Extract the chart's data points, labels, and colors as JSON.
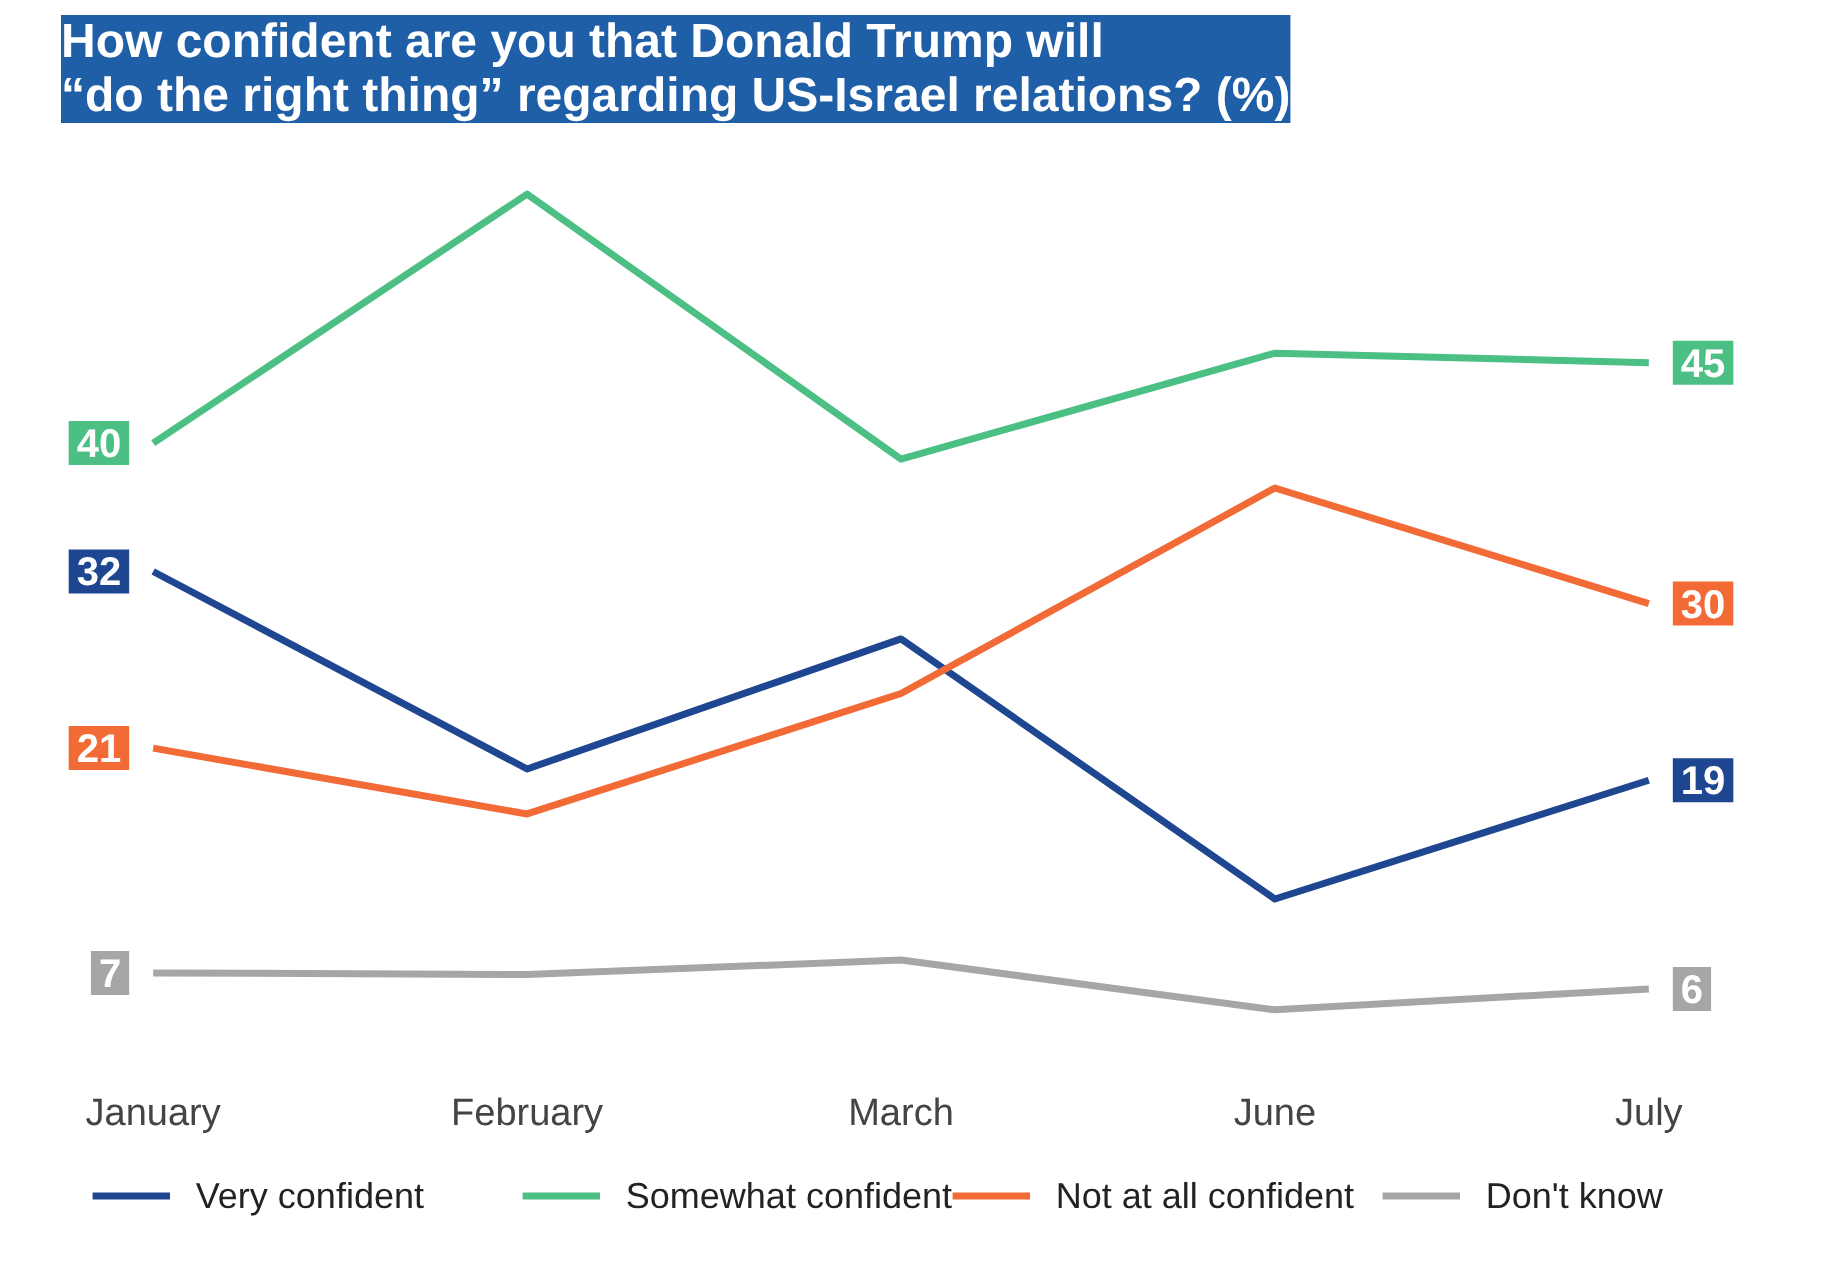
{
  "chart_data": {
    "type": "line",
    "title": "How confident are you that Donald Trump will\n“do the right thing” regarding US-Israel relations? (%)",
    "categories": [
      "January",
      "February",
      "March",
      "June",
      "July"
    ],
    "series": [
      {
        "name": "Very confident",
        "color": "#1f4690",
        "values": [
          32,
          19.7,
          27.8,
          11.6,
          19
        ],
        "value_labels": [
          "32",
          null,
          null,
          null,
          "19"
        ]
      },
      {
        "name": "Somewhat confident",
        "color": "#4cbf85",
        "values": [
          40,
          55.5,
          39,
          45.6,
          45
        ],
        "value_labels": [
          "40",
          null,
          null,
          null,
          "45"
        ]
      },
      {
        "name": "Not at all confident",
        "color": "#f26a35",
        "values": [
          21,
          16.9,
          24.4,
          37.2,
          30
        ],
        "value_labels": [
          "21",
          null,
          null,
          null,
          "30"
        ]
      },
      {
        "name": "Don't know",
        "color": "#a6a6a6",
        "values": [
          7,
          6.9,
          7.8,
          4.7,
          6
        ],
        "value_labels": [
          "7",
          null,
          null,
          null,
          "6"
        ]
      }
    ],
    "tick_labels": "x",
    "grid": false,
    "legend": "bottom",
    "marker": "none",
    "line_style": "solid"
  }
}
